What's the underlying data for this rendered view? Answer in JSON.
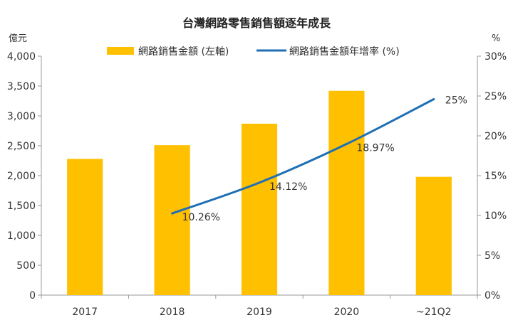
{
  "chart_data": {
    "type": "bar",
    "title": "台灣網路零售銷售額逐年成長",
    "categories": [
      "2017",
      "2018",
      "2019",
      "2020",
      "~21Q2"
    ],
    "y_unit_left": "億元",
    "y_unit_right": "%",
    "ylim_left": [
      0,
      4000
    ],
    "ylim_right": [
      0,
      30
    ],
    "y_ticks_left": [
      "0",
      "500",
      "1,000",
      "1,500",
      "2,000",
      "2,500",
      "3,000",
      "3,500",
      "4,000"
    ],
    "y_ticks_right": [
      "0%",
      "5%",
      "10%",
      "15%",
      "20%",
      "25%",
      "30%"
    ],
    "legend_position": "top-center",
    "grid": false,
    "series": [
      {
        "name": "網路銷售金額 (左軸)",
        "type": "bar",
        "axis": "left",
        "color": "#FFC000",
        "values": [
          2280,
          2510,
          2870,
          3420,
          1980
        ]
      },
      {
        "name": "網路銷售金額年增率 (%)",
        "type": "line",
        "axis": "right",
        "color": "#1F6FB4",
        "values": [
          null,
          10.26,
          14.12,
          18.97,
          24.6
        ],
        "data_labels": [
          "",
          "10.26%",
          "14.12%",
          "18.97%",
          "25%"
        ]
      }
    ]
  }
}
